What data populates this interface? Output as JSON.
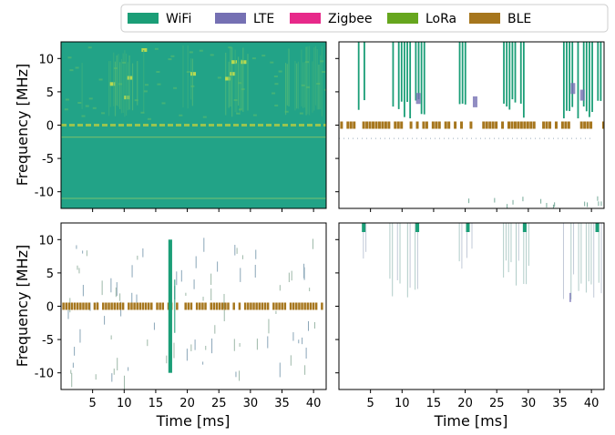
{
  "legend": {
    "placement": "top-right",
    "entries": [
      {
        "label": "WiFi",
        "color": "#1b9e77"
      },
      {
        "label": "LTE",
        "color": "#7570b3"
      },
      {
        "label": "Zigbee",
        "color": "#e7298a"
      },
      {
        "label": "LoRa",
        "color": "#66a61e"
      },
      {
        "label": "BLE",
        "color": "#a6761d"
      }
    ]
  },
  "chart_data": [
    {
      "type": "heatmap",
      "panel": "top-left",
      "ylabel": "Frequency [MHz]",
      "xlabel": "",
      "xlim": [
        0,
        42
      ],
      "ylim": [
        -12.5,
        12.5
      ],
      "x_ticks": [
        5,
        10,
        15,
        20,
        25,
        30,
        35,
        40
      ],
      "y_ticks": [
        10,
        5,
        0,
        -5,
        -10
      ],
      "x_tick_labels": [],
      "y_tick_labels": [
        "10",
        "5",
        "0",
        "-5",
        "-10"
      ],
      "background_color": "#22a387",
      "bands": [
        {
          "f": 0.0,
          "color": "#a6c84a"
        },
        {
          "f": -1.8,
          "color": "#7fc26a"
        },
        {
          "f": -11.0,
          "color": "#6fbd75"
        }
      ],
      "bursts": [
        {
          "t0": 2.5,
          "t1": 3.5,
          "f0": 1,
          "f1": 12
        },
        {
          "t0": 7.5,
          "t1": 13.5,
          "f0": 1,
          "f1": 12
        },
        {
          "t0": 19,
          "t1": 21,
          "f0": 2,
          "f1": 12
        },
        {
          "t0": 26,
          "t1": 30,
          "f0": 1,
          "f1": 12
        },
        {
          "t0": 35.5,
          "t1": 41.5,
          "f0": 1,
          "f1": 12
        }
      ]
    },
    {
      "type": "heatmap",
      "panel": "top-right",
      "xlabel": "",
      "xlim": [
        0,
        42
      ],
      "ylim": [
        -12.5,
        12.5
      ],
      "x_ticks": [
        5,
        10,
        15,
        20,
        25,
        30,
        35,
        40
      ],
      "y_ticks": [
        10,
        5,
        0,
        -5,
        -10
      ],
      "x_tick_labels": [],
      "y_tick_labels": [],
      "ble_band": {
        "f": 0.0,
        "color": "#a6761d"
      },
      "wifi_bursts": [
        {
          "t0": 3,
          "t1": 4.5,
          "f0": 1,
          "f1": 12.5
        },
        {
          "t0": 8,
          "t1": 13.5,
          "f0": 1,
          "f1": 12.5
        },
        {
          "t0": 19,
          "t1": 21,
          "f0": 1,
          "f1": 12.5
        },
        {
          "t0": 26,
          "t1": 30,
          "f0": 1,
          "f1": 12.5
        },
        {
          "t0": 35.5,
          "t1": 41.5,
          "f0": 1,
          "f1": 12.5
        }
      ],
      "lte_patches": [
        {
          "t": 12.5,
          "f": 4
        },
        {
          "t": 21.5,
          "f": 3.5
        },
        {
          "t": 37,
          "f": 5.5
        },
        {
          "t": 38.5,
          "f": 4.5
        }
      ]
    },
    {
      "type": "heatmap",
      "panel": "bottom-left",
      "xlabel": "Time [ms]",
      "ylabel": "Frequency [MHz]",
      "xlim": [
        0,
        42
      ],
      "ylim": [
        -12.5,
        12.5
      ],
      "x_ticks": [
        5,
        10,
        15,
        20,
        25,
        30,
        35,
        40
      ],
      "y_ticks": [
        10,
        5,
        0,
        -5,
        -10
      ],
      "x_tick_labels": [
        "5",
        "10",
        "15",
        "20",
        "25",
        "30",
        "35",
        "40"
      ],
      "y_tick_labels": [
        "10",
        "5",
        "0",
        "-5",
        "-10"
      ],
      "ble_band": {
        "f": 0.0,
        "color": "#a6761d"
      },
      "wifi_spike": {
        "t0": 17,
        "t1": 17.6,
        "f0": -10,
        "f1": 10
      }
    },
    {
      "type": "heatmap",
      "panel": "bottom-right",
      "xlabel": "Time [ms]",
      "xlim": [
        0,
        42
      ],
      "ylim": [
        -12.5,
        12.5
      ],
      "x_ticks": [
        5,
        10,
        15,
        20,
        25,
        30,
        35,
        40
      ],
      "y_ticks": [
        10,
        5,
        0,
        -5,
        -10
      ],
      "x_tick_labels": [
        "5",
        "10",
        "15",
        "20",
        "25",
        "30",
        "35",
        "40"
      ],
      "y_tick_labels": [],
      "wifi_bursts": [
        {
          "t0": 3,
          "t1": 4.5,
          "f0": 6,
          "f1": 12.5
        },
        {
          "t0": 8,
          "t1": 13,
          "f0": 1,
          "f1": 12.5
        },
        {
          "t0": 19,
          "t1": 21,
          "f0": 5,
          "f1": 12.5
        },
        {
          "t0": 26,
          "t1": 30,
          "f0": 3,
          "f1": 12.5
        },
        {
          "t0": 35.5,
          "t1": 41.5,
          "f0": 1,
          "f1": 12.5
        }
      ]
    }
  ]
}
